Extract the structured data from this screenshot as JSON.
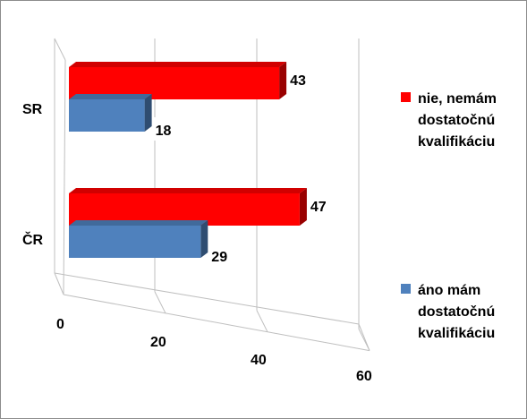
{
  "chart_data": {
    "type": "bar",
    "orientation": "horizontal",
    "style": "3d",
    "categories": [
      "SR",
      "ČR"
    ],
    "series": [
      {
        "name": "nie, nemám dostatočnú kvalifikáciu",
        "color": "#ff0000",
        "values": [
          43,
          47
        ]
      },
      {
        "name": "áno mám dostatočnú kvalifikáciu",
        "color": "#4f81bd",
        "values": [
          18,
          29
        ]
      }
    ],
    "xticks": [
      "0",
      "20",
      "40",
      "60"
    ],
    "xlim": [
      0,
      60
    ],
    "grid": true,
    "legend_position": "right",
    "title": "",
    "xlabel": "",
    "ylabel": ""
  },
  "legend": {
    "items": [
      {
        "lines": [
          "nie, nemám",
          "dostatočnú",
          "kvalifikáciu"
        ],
        "color": "#ff0000"
      },
      {
        "lines": [
          "áno mám",
          "dostatočnú",
          "kvalifikáciu"
        ],
        "color": "#4f81bd"
      }
    ]
  }
}
